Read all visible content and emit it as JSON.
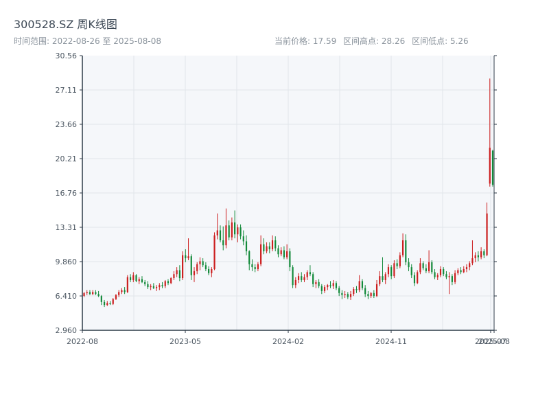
{
  "header": {
    "title": "300528.SZ 周K线图",
    "date_range_text": "时间范围: 2022-08-26 至 2025-08-08",
    "current_price_text": "当前价格: 17.59",
    "high_text": "区间高点: 28.26",
    "low_text": "区间低点: 5.26"
  },
  "colors": {
    "up": "#cc1f1f",
    "down": "#138a3a",
    "plot_background": "#f5f7fa",
    "grid": "#e1e5ea",
    "axis": "#2c3a47"
  },
  "chart_data": {
    "type": "candlestick",
    "title": "300528.SZ 周K线图",
    "date_range": [
      "2022-08-26",
      "2025-08-08"
    ],
    "current_price": 17.59,
    "range_high": 28.26,
    "range_low": 5.26,
    "ylim": [
      2.96,
      30.56
    ],
    "y_ticks": [
      "2.960",
      "6.410",
      "9.860",
      "13.31",
      "16.76",
      "20.21",
      "23.66",
      "27.11",
      "30.56"
    ],
    "x_ticks": [
      "2022-08",
      "2023-05",
      "2024-02",
      "2024-11",
      "2025-07",
      "2025-08"
    ],
    "grid": true,
    "weekly_ohlc": [
      [
        6.41,
        6.8,
        6.3,
        6.7
      ],
      [
        6.7,
        7.0,
        6.5,
        6.8
      ],
      [
        6.8,
        7.0,
        6.5,
        6.6
      ],
      [
        6.6,
        7.0,
        6.5,
        6.8
      ],
      [
        6.8,
        7.0,
        6.5,
        6.6
      ],
      [
        6.6,
        6.9,
        6.3,
        6.4
      ],
      [
        6.4,
        6.5,
        5.5,
        5.8
      ],
      [
        5.8,
        6.0,
        5.3,
        5.5
      ],
      [
        5.5,
        5.9,
        5.4,
        5.7
      ],
      [
        5.7,
        5.9,
        5.5,
        5.6
      ],
      [
        5.6,
        6.2,
        5.5,
        6.1
      ],
      [
        6.1,
        6.6,
        6.0,
        6.5
      ],
      [
        6.5,
        7.0,
        6.3,
        6.8
      ],
      [
        6.8,
        7.2,
        6.6,
        7.0
      ],
      [
        7.0,
        7.3,
        6.6,
        6.8
      ],
      [
        6.8,
        8.5,
        6.7,
        8.3
      ],
      [
        8.3,
        8.6,
        7.8,
        8.0
      ],
      [
        8.0,
        8.8,
        7.8,
        8.5
      ],
      [
        8.5,
        8.6,
        7.8,
        7.9
      ],
      [
        7.9,
        8.3,
        7.6,
        8.1
      ],
      [
        8.1,
        8.4,
        7.7,
        7.8
      ],
      [
        7.8,
        8.0,
        7.4,
        7.6
      ],
      [
        7.6,
        7.9,
        7.1,
        7.3
      ],
      [
        7.3,
        7.6,
        7.0,
        7.4
      ],
      [
        7.4,
        7.7,
        7.1,
        7.2
      ],
      [
        7.2,
        7.5,
        6.9,
        7.3
      ],
      [
        7.3,
        7.7,
        7.0,
        7.5
      ],
      [
        7.5,
        7.8,
        7.2,
        7.4
      ],
      [
        7.4,
        8.0,
        7.2,
        7.9
      ],
      [
        7.9,
        8.1,
        7.5,
        7.7
      ],
      [
        7.7,
        8.3,
        7.6,
        8.2
      ],
      [
        8.2,
        8.9,
        8.0,
        8.6
      ],
      [
        8.6,
        9.3,
        8.3,
        9.0
      ],
      [
        9.0,
        9.5,
        7.9,
        8.2
      ],
      [
        8.2,
        10.9,
        8.0,
        10.5
      ],
      [
        10.5,
        11.1,
        9.8,
        10.2
      ],
      [
        10.2,
        12.2,
        10.0,
        10.4
      ],
      [
        10.4,
        10.6,
        8.0,
        8.5
      ],
      [
        8.5,
        9.3,
        7.8,
        8.9
      ],
      [
        8.9,
        9.8,
        8.6,
        9.6
      ],
      [
        9.6,
        10.3,
        9.0,
        9.9
      ],
      [
        9.9,
        10.2,
        9.3,
        9.5
      ],
      [
        9.5,
        9.8,
        8.9,
        9.1
      ],
      [
        9.1,
        9.4,
        8.5,
        8.7
      ],
      [
        8.7,
        9.3,
        8.3,
        9.1
      ],
      [
        9.1,
        12.8,
        9.0,
        12.5
      ],
      [
        12.5,
        14.7,
        12.1,
        13.0
      ],
      [
        13.0,
        13.5,
        11.8,
        12.0
      ],
      [
        12.0,
        13.4,
        11.0,
        11.5
      ],
      [
        11.5,
        15.2,
        11.2,
        13.5
      ],
      [
        13.5,
        14.0,
        12.0,
        12.3
      ],
      [
        12.3,
        14.3,
        12.0,
        13.8
      ],
      [
        13.8,
        15.0,
        12.2,
        12.6
      ],
      [
        12.6,
        13.6,
        11.8,
        13.3
      ],
      [
        13.3,
        13.6,
        12.1,
        12.4
      ],
      [
        12.4,
        13.0,
        11.5,
        11.9
      ],
      [
        11.9,
        12.5,
        10.5,
        10.9
      ],
      [
        10.9,
        11.0,
        9.0,
        9.6
      ],
      [
        9.6,
        10.1,
        8.9,
        9.3
      ],
      [
        9.3,
        9.6,
        8.8,
        9.1
      ],
      [
        9.1,
        9.8,
        8.9,
        9.6
      ],
      [
        9.6,
        12.5,
        9.4,
        11.6
      ],
      [
        11.6,
        12.2,
        10.6,
        10.9
      ],
      [
        10.9,
        11.8,
        10.7,
        11.4
      ],
      [
        11.4,
        11.8,
        10.7,
        11.1
      ],
      [
        11.1,
        12.5,
        10.9,
        12.0
      ],
      [
        12.0,
        12.4,
        10.9,
        11.2
      ],
      [
        11.2,
        11.5,
        10.3,
        10.6
      ],
      [
        10.6,
        11.3,
        10.4,
        11.0
      ],
      [
        11.0,
        11.4,
        10.1,
        10.3
      ],
      [
        10.3,
        11.6,
        10.1,
        10.9
      ],
      [
        10.9,
        11.2,
        8.9,
        9.3
      ],
      [
        9.3,
        9.5,
        7.2,
        7.5
      ],
      [
        7.5,
        8.3,
        7.2,
        8.0
      ],
      [
        8.0,
        8.7,
        7.7,
        8.4
      ],
      [
        8.4,
        8.8,
        7.8,
        8.0
      ],
      [
        8.0,
        8.6,
        7.8,
        8.3
      ],
      [
        8.3,
        9.0,
        8.0,
        8.8
      ],
      [
        8.8,
        9.5,
        8.4,
        8.6
      ],
      [
        8.6,
        8.8,
        7.3,
        7.6
      ],
      [
        7.6,
        8.0,
        7.2,
        7.8
      ],
      [
        7.8,
        8.1,
        7.2,
        7.4
      ],
      [
        7.4,
        7.6,
        6.6,
        6.9
      ],
      [
        6.9,
        7.5,
        6.7,
        7.3
      ],
      [
        7.3,
        7.6,
        7.0,
        7.5
      ],
      [
        7.5,
        7.9,
        7.2,
        7.4
      ],
      [
        7.4,
        8.0,
        7.1,
        7.7
      ],
      [
        7.7,
        7.9,
        7.0,
        7.2
      ],
      [
        7.2,
        7.4,
        6.4,
        6.7
      ],
      [
        6.7,
        7.0,
        6.1,
        6.5
      ],
      [
        6.5,
        6.9,
        6.2,
        6.6
      ],
      [
        6.6,
        6.8,
        6.1,
        6.3
      ],
      [
        6.3,
        6.9,
        6.0,
        6.6
      ],
      [
        6.6,
        7.3,
        6.4,
        7.1
      ],
      [
        7.1,
        7.4,
        6.7,
        7.0
      ],
      [
        7.0,
        8.5,
        6.8,
        7.9
      ],
      [
        7.9,
        8.1,
        7.0,
        7.2
      ],
      [
        7.2,
        7.5,
        6.3,
        6.6
      ],
      [
        6.6,
        6.9,
        6.1,
        6.4
      ],
      [
        6.4,
        6.8,
        6.2,
        6.7
      ],
      [
        6.7,
        7.0,
        6.2,
        6.4
      ],
      [
        6.4,
        8.0,
        6.3,
        7.6
      ],
      [
        7.6,
        8.9,
        7.4,
        8.4
      ],
      [
        8.4,
        10.3,
        7.8,
        8.0
      ],
      [
        8.0,
        8.8,
        7.6,
        8.6
      ],
      [
        8.6,
        9.6,
        8.3,
        9.3
      ],
      [
        9.3,
        9.5,
        8.1,
        8.4
      ],
      [
        8.4,
        10.0,
        8.2,
        9.7
      ],
      [
        9.7,
        10.1,
        9.1,
        9.4
      ],
      [
        9.4,
        10.8,
        9.2,
        10.5
      ],
      [
        10.5,
        12.7,
        10.3,
        12.0
      ],
      [
        12.0,
        12.6,
        9.5,
        9.8
      ],
      [
        9.8,
        10.2,
        8.9,
        9.3
      ],
      [
        9.3,
        9.6,
        8.2,
        8.5
      ],
      [
        8.5,
        8.8,
        7.4,
        7.7
      ],
      [
        7.7,
        9.0,
        7.6,
        8.8
      ],
      [
        8.8,
        10.2,
        8.6,
        9.7
      ],
      [
        9.7,
        9.9,
        9.0,
        9.2
      ],
      [
        9.2,
        9.6,
        8.7,
        8.9
      ],
      [
        8.9,
        11.0,
        8.7,
        9.8
      ],
      [
        9.8,
        10.0,
        8.6,
        8.8
      ],
      [
        8.8,
        9.1,
        8.1,
        8.3
      ],
      [
        8.3,
        8.7,
        8.0,
        8.5
      ],
      [
        8.5,
        9.4,
        8.3,
        9.1
      ],
      [
        9.1,
        9.3,
        8.4,
        8.6
      ],
      [
        8.6,
        8.9,
        8.1,
        8.3
      ],
      [
        8.3,
        8.8,
        6.6,
        8.4
      ],
      [
        8.4,
        8.6,
        7.5,
        7.8
      ],
      [
        7.8,
        9.0,
        7.6,
        8.7
      ],
      [
        8.7,
        9.2,
        8.5,
        9.0
      ],
      [
        9.0,
        9.3,
        8.6,
        8.8
      ],
      [
        8.8,
        9.4,
        8.7,
        9.1
      ],
      [
        9.1,
        9.6,
        8.8,
        9.3
      ],
      [
        9.3,
        9.9,
        9.0,
        9.7
      ],
      [
        9.7,
        12.0,
        9.5,
        10.2
      ],
      [
        10.2,
        10.8,
        9.8,
        10.5
      ],
      [
        10.5,
        10.9,
        9.9,
        10.3
      ],
      [
        10.3,
        11.3,
        10.1,
        10.9
      ],
      [
        10.9,
        11.1,
        10.2,
        10.5
      ],
      [
        10.5,
        15.8,
        10.4,
        14.7
      ],
      [
        17.7,
        28.26,
        17.4,
        21.3
      ],
      [
        21.0,
        21.1,
        17.4,
        17.59
      ]
    ]
  }
}
